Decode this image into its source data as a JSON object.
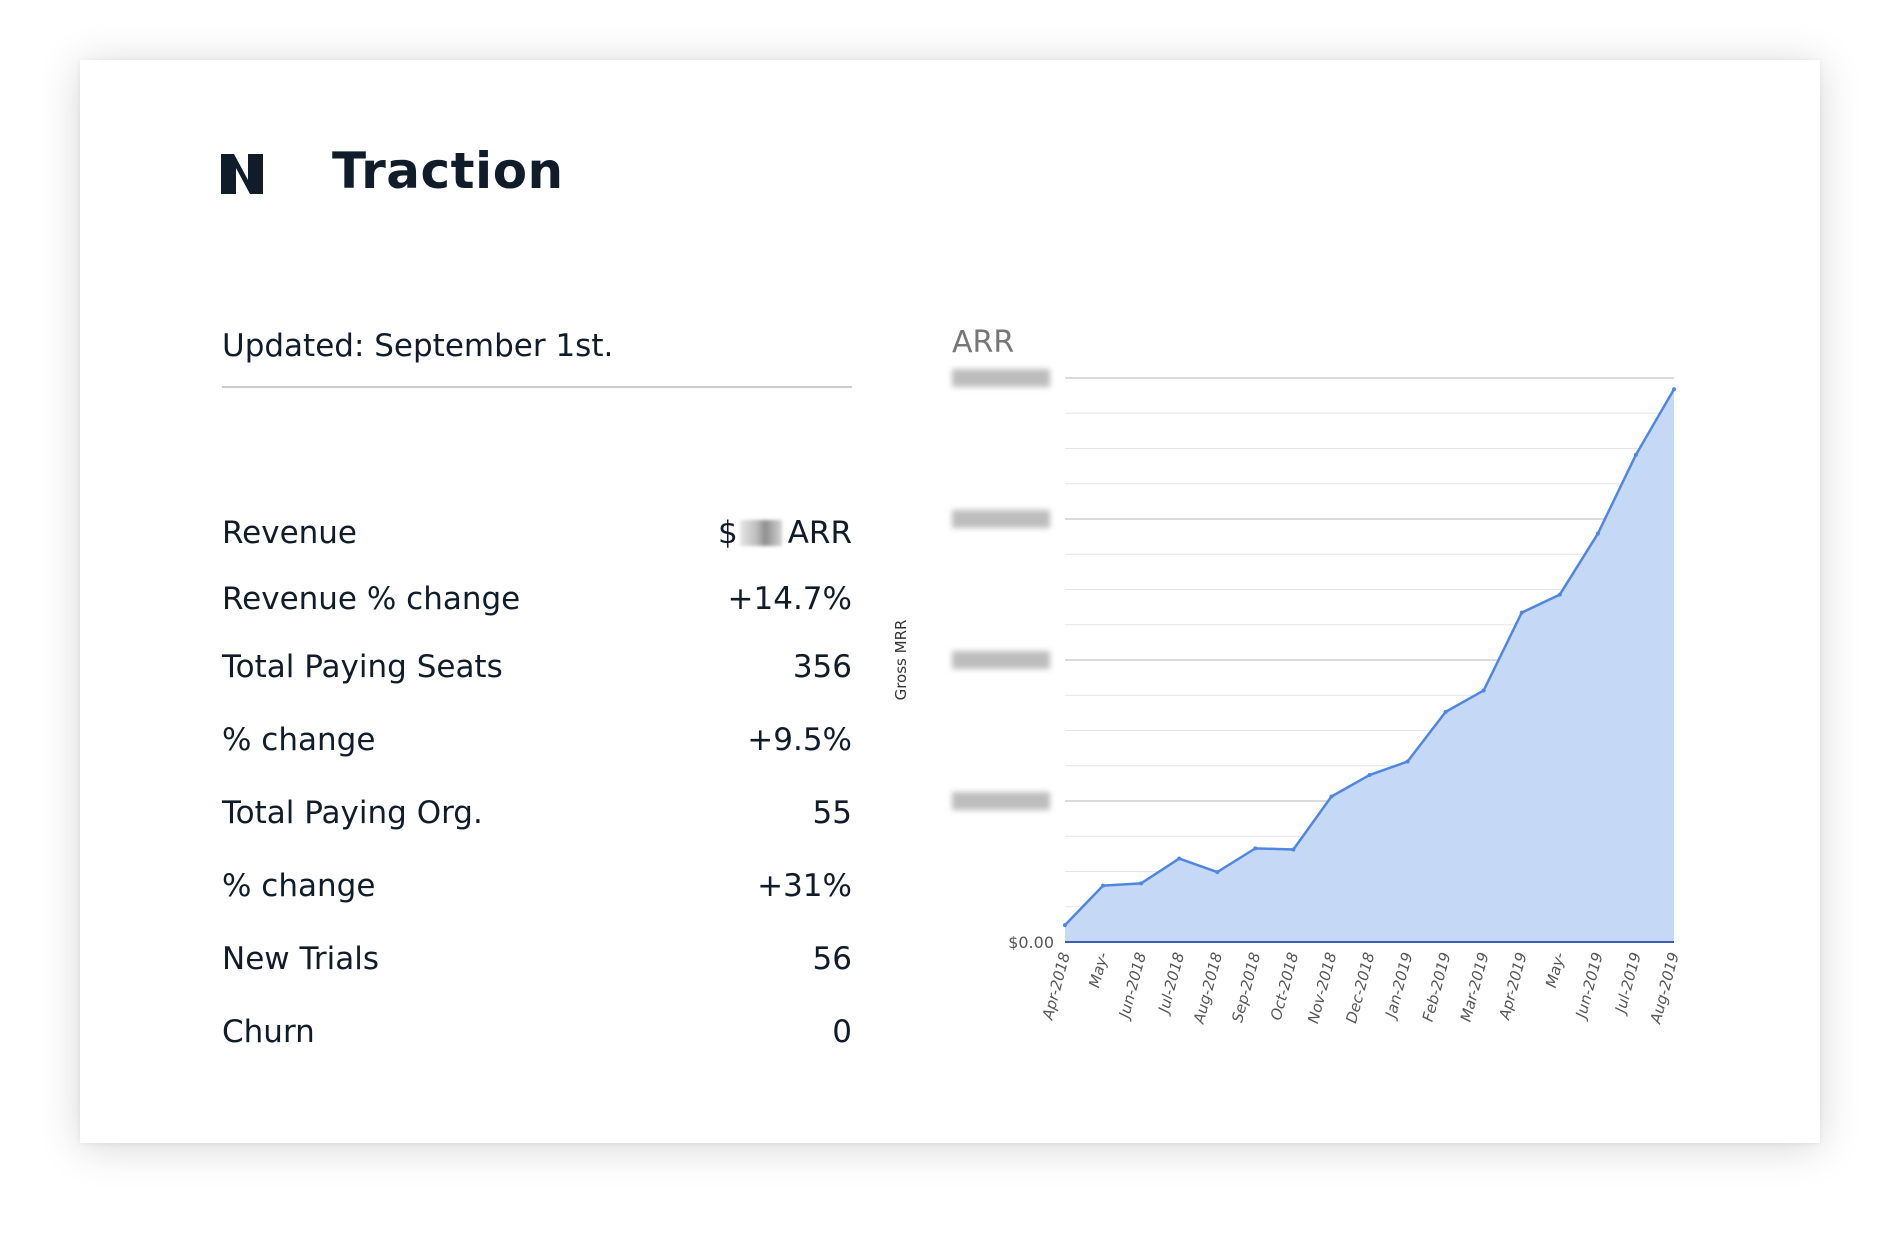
{
  "header": {
    "title": "Traction"
  },
  "updated": "Updated: September 1st.",
  "metrics": [
    {
      "label": "Revenue",
      "prefix": "$",
      "value": "ARR",
      "redacted": true
    },
    {
      "label": "Revenue % change",
      "value": "+14.7%"
    },
    {
      "label": "Total Paying Seats",
      "value": "356"
    },
    {
      "label": "% change",
      "value": "+9.5%"
    },
    {
      "label": "Total Paying Org.",
      "value": "55"
    },
    {
      "label": "% change",
      "value": "+31%"
    },
    {
      "label": "New Trials",
      "value": "56"
    },
    {
      "label": "Churn",
      "value": "0"
    }
  ],
  "colors": {
    "line": "#4f87e0",
    "fill": "#c5d9f7",
    "grid": "#dcdcdc",
    "axis": "#3a5fb0",
    "text": "#111c2b"
  },
  "chart_data": {
    "type": "area",
    "title": "ARR",
    "xlabel": "",
    "ylabel": "Gross MRR",
    "y_tick_labels": [
      "$0.00"
    ],
    "ylim": [
      0,
      100
    ],
    "categories": [
      "Apr-2018",
      "May-",
      "Jun-2018",
      "Jul-2018",
      "Aug-2018",
      "Sep-2018",
      "Oct-2018",
      "Nov-2018",
      "Dec-2018",
      "Jan-2019",
      "Feb-2019",
      "Mar-2019",
      "Apr-2019",
      "May-",
      "Jun-2019",
      "Jul-2019",
      "Aug-2019"
    ],
    "series": [
      {
        "name": "Gross MRR",
        "values": [
          3,
          10,
          10.4,
          14.8,
          12.4,
          16.6,
          16.4,
          25.8,
          29.6,
          32,
          40.8,
          44.6,
          58.4,
          61.6,
          72.4,
          86.4,
          98
        ]
      }
    ],
    "grid": true
  }
}
